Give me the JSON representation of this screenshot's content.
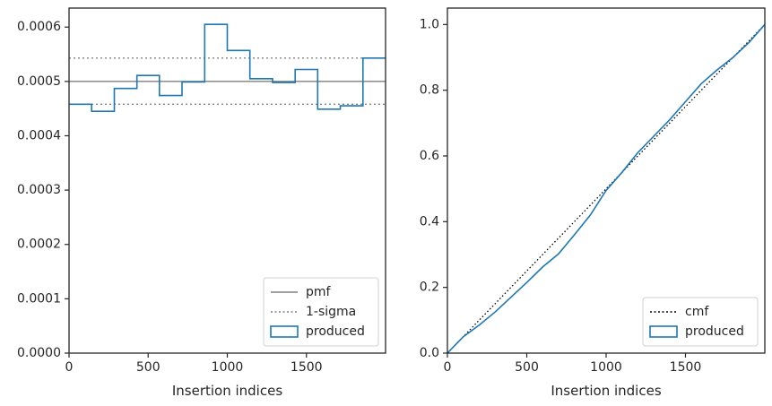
{
  "chart_data": [
    {
      "type": "step",
      "xlabel": "Insertion indices",
      "ylabel": "",
      "xlim": [
        0,
        2000
      ],
      "ylim": [
        0,
        0.000635
      ],
      "xticks": [
        0,
        500,
        1000,
        1500
      ],
      "xtick_labels": [
        "0",
        "500",
        "1000",
        "1500"
      ],
      "yticks": [
        0,
        0.0001,
        0.0002,
        0.0003,
        0.0004,
        0.0005,
        0.0006
      ],
      "ytick_labels": [
        "0.0000",
        "0.0001",
        "0.0002",
        "0.0003",
        "0.0004",
        "0.0005",
        "0.0006"
      ],
      "grid": false,
      "legend_position": "lower right",
      "reference_lines": [
        {
          "name": "pmf",
          "y": 0.0005,
          "style": "solid",
          "color": "#808080"
        },
        {
          "name": "1-sigma",
          "y": 0.000543,
          "style": "dotted",
          "color": "#808080"
        },
        {
          "name": "1-sigma",
          "y": 0.000458,
          "style": "dotted",
          "color": "#808080"
        }
      ],
      "series": [
        {
          "name": "produced",
          "color": "#1f77b4",
          "bin_edges": [
            0,
            143,
            286,
            429,
            571,
            714,
            857,
            1000,
            1143,
            1286,
            1429,
            1571,
            1714,
            1857,
            2000
          ],
          "values": [
            0.000458,
            0.000445,
            0.000487,
            0.000511,
            0.000474,
            0.000499,
            0.000605,
            0.000557,
            0.000505,
            0.000498,
            0.000522,
            0.000449,
            0.000455,
            0.000543
          ]
        }
      ],
      "legend": [
        {
          "label": "pmf",
          "marker": "solid-line"
        },
        {
          "label": "1-sigma",
          "marker": "dotted-line"
        },
        {
          "label": "produced",
          "marker": "box"
        }
      ]
    },
    {
      "type": "line",
      "xlabel": "Insertion indices",
      "ylabel": "",
      "xlim": [
        0,
        2000
      ],
      "ylim": [
        0,
        1.05
      ],
      "xticks": [
        0,
        500,
        1000,
        1500
      ],
      "xtick_labels": [
        "0",
        "500",
        "1000",
        "1500"
      ],
      "yticks": [
        0,
        0.2,
        0.4,
        0.6,
        0.8,
        1.0
      ],
      "ytick_labels": [
        "0.0",
        "0.2",
        "0.4",
        "0.6",
        "0.8",
        "1.0"
      ],
      "grid": false,
      "legend_position": "lower right",
      "series": [
        {
          "name": "cmf",
          "style": "dotted",
          "color": "#000000",
          "x": [
            0,
            2000
          ],
          "y": [
            0,
            1.0
          ]
        },
        {
          "name": "produced",
          "style": "solid",
          "color": "#1f77b4",
          "x": [
            0,
            100,
            200,
            300,
            400,
            500,
            600,
            700,
            800,
            900,
            1000,
            1100,
            1200,
            1300,
            1400,
            1500,
            1600,
            1700,
            1800,
            1900,
            2000
          ],
          "y": [
            0,
            0.05,
            0.085,
            0.125,
            0.17,
            0.215,
            0.262,
            0.302,
            0.36,
            0.42,
            0.495,
            0.55,
            0.61,
            0.66,
            0.71,
            0.765,
            0.82,
            0.862,
            0.9,
            0.945,
            1.0
          ]
        }
      ],
      "legend": [
        {
          "label": "cmf",
          "marker": "dotted-line"
        },
        {
          "label": "produced",
          "marker": "box"
        }
      ]
    }
  ]
}
